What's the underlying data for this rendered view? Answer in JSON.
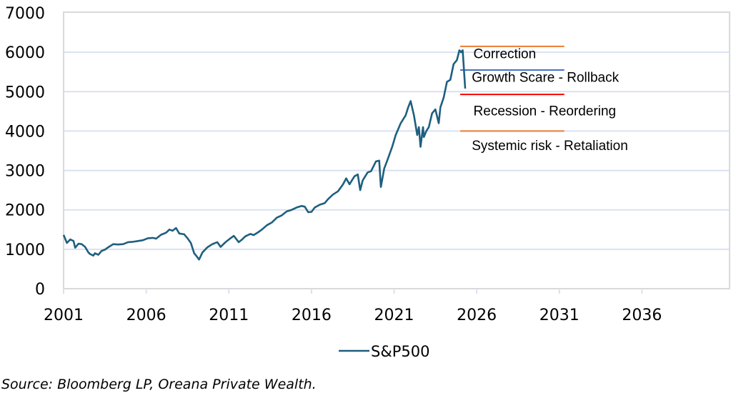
{
  "chart_data": {
    "type": "line",
    "title": "",
    "xlabel": "",
    "ylabel": "",
    "xlim": [
      2001,
      2041.3
    ],
    "ylim": [
      0,
      7000
    ],
    "grid": "horizontal",
    "x_ticks": [
      2001,
      2006,
      2011,
      2016,
      2021,
      2026,
      2031,
      2036
    ],
    "x_tick_labels": [
      "2001",
      "2006",
      "2011",
      "2016",
      "2021",
      "2026",
      "2031",
      "2036"
    ],
    "y_ticks": [
      0,
      1000,
      2000,
      3000,
      4000,
      5000,
      6000,
      7000
    ],
    "y_tick_labels": [
      "0",
      "1000",
      "2000",
      "3000",
      "4000",
      "5000",
      "6000",
      "7000"
    ],
    "legend": {
      "position": "bottom",
      "entries": [
        "S&P500"
      ]
    },
    "series": [
      {
        "name": "S&P500",
        "color": "#1F5F7F",
        "x": [
          2001.0,
          2001.2,
          2001.4,
          2001.6,
          2001.7,
          2001.9,
          2002.1,
          2002.3,
          2002.5,
          2002.6,
          2002.8,
          2002.9,
          2003.1,
          2003.3,
          2003.5,
          2003.7,
          2004.0,
          2004.3,
          2004.6,
          2004.9,
          2005.2,
          2005.5,
          2005.8,
          2006.1,
          2006.4,
          2006.6,
          2006.9,
          2007.2,
          2007.4,
          2007.6,
          2007.8,
          2008.0,
          2008.3,
          2008.5,
          2008.7,
          2008.9,
          2009.0,
          2009.2,
          2009.4,
          2009.7,
          2010.0,
          2010.3,
          2010.5,
          2010.8,
          2011.1,
          2011.3,
          2011.6,
          2011.8,
          2012.0,
          2012.3,
          2012.5,
          2012.8,
          2013.0,
          2013.3,
          2013.6,
          2013.9,
          2014.2,
          2014.5,
          2014.8,
          2015.1,
          2015.4,
          2015.6,
          2015.8,
          2016.0,
          2016.2,
          2016.5,
          2016.8,
          2017.0,
          2017.3,
          2017.6,
          2017.9,
          2018.1,
          2018.3,
          2018.6,
          2018.8,
          2018.95,
          2019.1,
          2019.4,
          2019.6,
          2019.9,
          2020.1,
          2020.2,
          2020.4,
          2020.6,
          2020.9,
          2021.1,
          2021.4,
          2021.7,
          2021.85,
          2022.0,
          2022.2,
          2022.4,
          2022.5,
          2022.6,
          2022.75,
          2022.8,
          2022.95,
          2023.1,
          2023.3,
          2023.5,
          2023.7,
          2023.8,
          2024.0,
          2024.2,
          2024.4,
          2024.5,
          2024.6,
          2024.8,
          2024.95,
          2025.05,
          2025.15,
          2025.3
        ],
        "values": [
          1366,
          1160,
          1250,
          1210,
          1040,
          1140,
          1130,
          1060,
          920,
          880,
          840,
          900,
          860,
          960,
          990,
          1050,
          1130,
          1120,
          1130,
          1180,
          1190,
          1210,
          1230,
          1280,
          1290,
          1270,
          1370,
          1420,
          1500,
          1470,
          1540,
          1400,
          1380,
          1280,
          1160,
          900,
          850,
          740,
          920,
          1050,
          1130,
          1180,
          1060,
          1180,
          1280,
          1340,
          1180,
          1250,
          1330,
          1390,
          1360,
          1440,
          1500,
          1610,
          1680,
          1800,
          1860,
          1960,
          2000,
          2060,
          2100,
          2080,
          1940,
          1950,
          2060,
          2130,
          2170,
          2270,
          2390,
          2470,
          2640,
          2800,
          2650,
          2850,
          2900,
          2500,
          2750,
          2950,
          2980,
          3230,
          3250,
          2580,
          3050,
          3270,
          3620,
          3900,
          4200,
          4400,
          4600,
          4760,
          4400,
          3900,
          4100,
          3600,
          4100,
          3850,
          4000,
          4100,
          4450,
          4550,
          4200,
          4600,
          4850,
          5250,
          5300,
          5500,
          5700,
          5800,
          6050,
          6000,
          6050,
          5080
        ]
      }
    ],
    "annotations": {
      "levels": [
        {
          "value": 6150,
          "color": "#ED7D31",
          "x_start": 2025.0,
          "x_end": 2031.3
        },
        {
          "value": 5550,
          "color": "#4472C4",
          "x_start": 2025.0,
          "x_end": 2031.3
        },
        {
          "value": 4930,
          "color": "#FF0000",
          "x_start": 2025.0,
          "x_end": 2031.3
        },
        {
          "value": 4000,
          "color": "#ED7D31",
          "x_start": 2025.0,
          "x_end": 2031.3
        }
      ],
      "labels": [
        {
          "text": "Correction",
          "x": 2025.8,
          "y": 5850
        },
        {
          "text": "Growth Scare - Rollback",
          "x": 2025.7,
          "y": 5250
        },
        {
          "text": "Recession - Reordering",
          "x": 2025.8,
          "y": 4400
        },
        {
          "text": "Systemic risk - Retaliation",
          "x": 2025.7,
          "y": 3520
        }
      ]
    }
  },
  "source": "Source: Bloomberg LP, Oreana Private Wealth."
}
